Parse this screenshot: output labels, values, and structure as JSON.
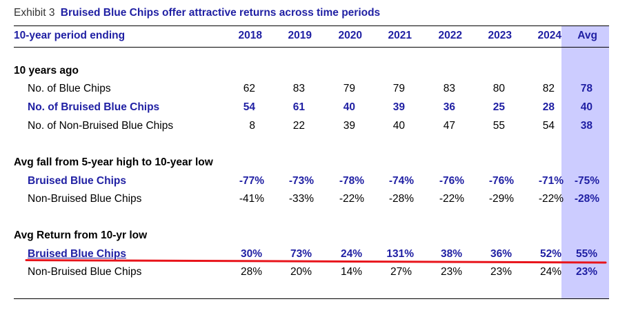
{
  "title": {
    "label": "Exhibit 3",
    "text": "Bruised Blue Chips offer attractive returns across time periods"
  },
  "header": {
    "label": "10-year period ending",
    "years": [
      "2018",
      "2019",
      "2020",
      "2021",
      "2022",
      "2023",
      "2024"
    ],
    "avg": "Avg"
  },
  "sections": {
    "ten_years_ago": {
      "title": "10 years ago",
      "rows": [
        {
          "label": "No. of Blue Chips",
          "values": [
            "62",
            "83",
            "79",
            "79",
            "83",
            "80",
            "82"
          ],
          "avg": "78"
        },
        {
          "label": "No. of Bruised Blue Chips",
          "values": [
            "54",
            "61",
            "40",
            "39",
            "36",
            "25",
            "28"
          ],
          "avg": "40"
        },
        {
          "label": "No. of Non-Bruised Blue Chips",
          "values": [
            "8",
            "22",
            "39",
            "40",
            "47",
            "55",
            "54"
          ],
          "avg": "38"
        }
      ]
    },
    "avg_fall": {
      "title": "Avg fall from 5-year high to 10-year low",
      "rows": [
        {
          "label": "Bruised Blue Chips",
          "values": [
            "-77%",
            "-73%",
            "-78%",
            "-74%",
            "-76%",
            "-76%",
            "-71%"
          ],
          "avg": "-75%"
        },
        {
          "label": "Non-Bruised Blue Chips",
          "values": [
            "-41%",
            "-33%",
            "-22%",
            "-28%",
            "-22%",
            "-29%",
            "-22%"
          ],
          "avg": "-28%"
        }
      ]
    },
    "avg_return": {
      "title": "Avg Return from 10-yr low",
      "rows": [
        {
          "label": "Bruised Blue Chips",
          "values": [
            "30%",
            "73%",
            "24%",
            "131%",
            "38%",
            "36%",
            "52%"
          ],
          "avg": "55%"
        },
        {
          "label": "Non-Bruised Blue Chips",
          "values": [
            "28%",
            "20%",
            "14%",
            "27%",
            "23%",
            "23%",
            "24%"
          ],
          "avg": "23%"
        }
      ]
    }
  },
  "colors": {
    "accent": "#1f1fa3",
    "avg_column": "#ccccff",
    "highlight_line": "#e8141b"
  }
}
